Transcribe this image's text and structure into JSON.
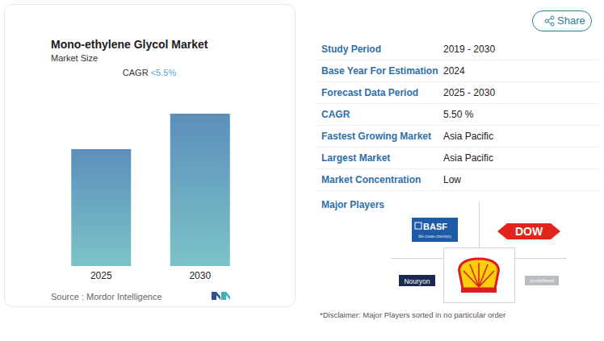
{
  "chart_data": {
    "type": "bar",
    "title": "Mono-ethylene Glycol Market",
    "subtitle": "Market Size",
    "annotation": "CAGR <5.5%",
    "source": "Source : Mordor Intelligence",
    "categories": [
      "2025",
      "2030"
    ],
    "values": [
      145,
      189
    ],
    "color": "#5b8fba",
    "ylim": [
      0,
      200
    ],
    "grid": false,
    "tick_labels": "x"
  },
  "share": "Share",
  "info_table": [
    {
      "label": "Study Period",
      "value": "2019 - 2030"
    },
    {
      "label": "Base Year For Estimation",
      "value": "2024"
    },
    {
      "label": "Forecast Data Period",
      "value": "2025 - 2030"
    },
    {
      "label": "CAGR",
      "value": "5.50 %"
    },
    {
      "label": "Fastest Growing Market",
      "value": "Asia Pacific"
    },
    {
      "label": "Largest Market",
      "value": "Asia Pacific"
    },
    {
      "label": "Market Concentration",
      "value": "Low"
    }
  ],
  "major_players": {
    "title": "Major Players",
    "logos": [
      {
        "name": "BASF",
        "tagline": "We create chemistry"
      },
      {
        "name": "DOW"
      },
      {
        "name": "Nouryon"
      },
      {
        "name": "lyondellbasell"
      }
    ]
  },
  "disclaimer": "*Disclaimer: Major Players sorted in no particular order"
}
